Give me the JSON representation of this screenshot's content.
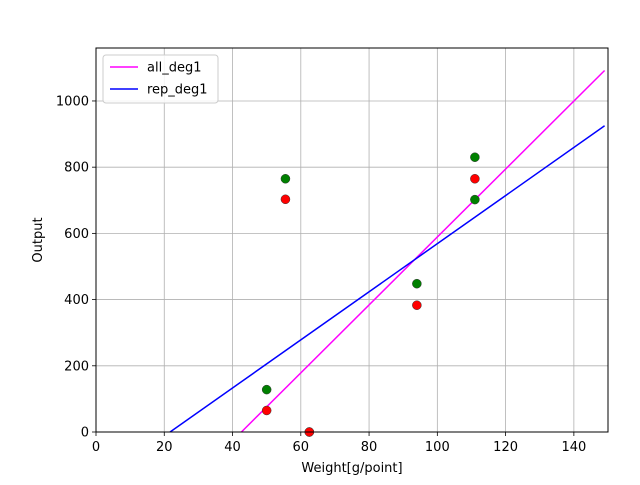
{
  "chart_data": {
    "type": "scatter",
    "title": "",
    "xlabel": "Weight[g/point]",
    "ylabel": "Output",
    "xlim": [
      0,
      150
    ],
    "ylim": [
      0,
      1160
    ],
    "xticks": [
      0,
      20,
      40,
      60,
      80,
      100,
      120,
      140
    ],
    "yticks": [
      0,
      200,
      400,
      600,
      800,
      1000
    ],
    "grid": true,
    "legend_position": "upper-left",
    "scatter_series": [
      {
        "color": "#008000",
        "points": [
          [
            50,
            128
          ],
          [
            55.5,
            765
          ],
          [
            62.5,
            0
          ],
          [
            94,
            448
          ],
          [
            111,
            830
          ],
          [
            111,
            702
          ]
        ]
      },
      {
        "color": "#ff0000",
        "points": [
          [
            50,
            65
          ],
          [
            55.5,
            703
          ],
          [
            62.5,
            0
          ],
          [
            94,
            383
          ],
          [
            111,
            765
          ]
        ]
      }
    ],
    "line_series": [
      {
        "name": "all_deg1",
        "color": "#ff00ff",
        "points": [
          [
            42.6,
            0
          ],
          [
            149,
            1092
          ]
        ]
      },
      {
        "name": "rep_deg1",
        "color": "#0000ff",
        "points": [
          [
            21.7,
            0
          ],
          [
            149,
            925
          ]
        ]
      }
    ]
  }
}
